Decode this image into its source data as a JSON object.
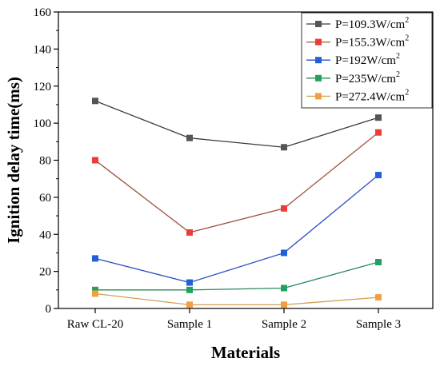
{
  "chart_data": {
    "type": "line",
    "categories": [
      "Raw CL-20",
      "Sample 1",
      "Sample 2",
      "Sample 3"
    ],
    "xlabel": "Materials",
    "ylabel": "Ignition delay time(ms)",
    "ylim": [
      0,
      160
    ],
    "yticks": [
      0,
      20,
      40,
      60,
      80,
      100,
      120,
      140,
      160
    ],
    "grid": false,
    "legend_position": "top-right",
    "series": [
      {
        "name": "P=109.3W/cm",
        "unit_sup": "2",
        "marker_color": "#555555",
        "line_color": "#3a3a3a",
        "values": [
          112,
          92,
          87,
          103
        ]
      },
      {
        "name": "P=155.3W/cm",
        "unit_sup": "2",
        "marker_color": "#ef3a3a",
        "line_color": "#a0503c",
        "values": [
          80,
          41,
          54,
          95
        ]
      },
      {
        "name": "P=192W/cm",
        "unit_sup": "2",
        "marker_color": "#2060d8",
        "line_color": "#2a4fc4",
        "values": [
          27,
          14,
          30,
          72
        ]
      },
      {
        "name": "P=235W/cm",
        "unit_sup": "2",
        "marker_color": "#22a060",
        "line_color": "#2a8a5a",
        "values": [
          10,
          10,
          11,
          25
        ]
      },
      {
        "name": "P=272.4W/cm",
        "unit_sup": "2",
        "marker_color": "#f0a040",
        "line_color": "#d0a050",
        "values": [
          8,
          2,
          2,
          6
        ]
      }
    ]
  }
}
